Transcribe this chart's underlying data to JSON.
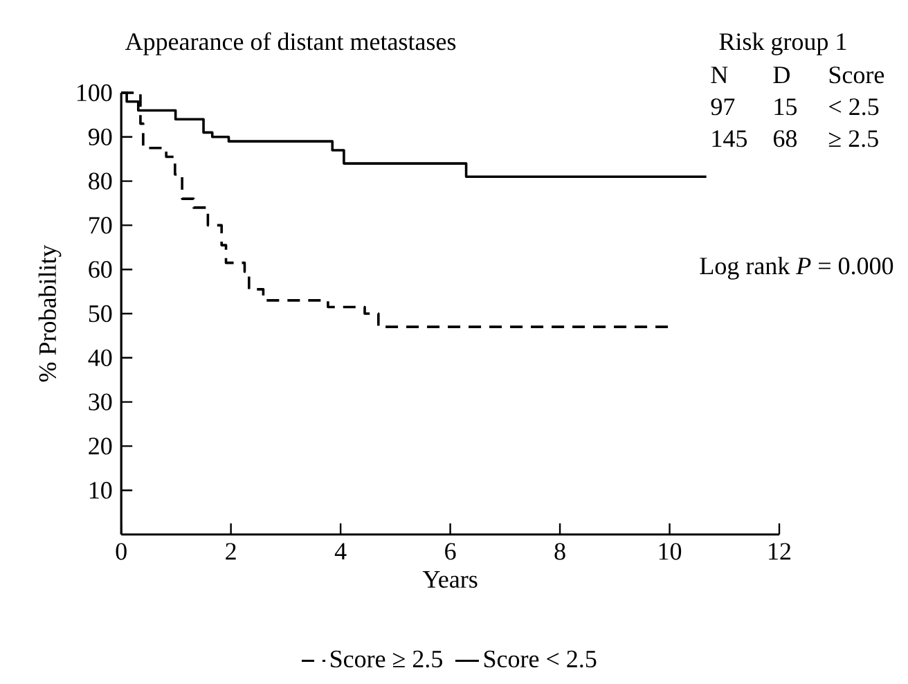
{
  "chart_data": {
    "type": "step",
    "title": "Appearance of distant metastases",
    "xlabel": "Years",
    "ylabel": "% Probability",
    "xlim": [
      0,
      12
    ],
    "ylim": [
      0,
      100
    ],
    "xticks": [
      0,
      2,
      4,
      6,
      8,
      10,
      12
    ],
    "yticks": [
      10,
      20,
      30,
      40,
      50,
      60,
      70,
      80,
      90,
      100
    ],
    "legend": "bottom",
    "marker": "none",
    "series": [
      {
        "name": "Score ≥ 2.5",
        "color": "#000000",
        "line_style": "dashed",
        "x": [
          0,
          0.35,
          0.4,
          0.82,
          0.98,
          1.11,
          1.32,
          1.58,
          1.83,
          1.91,
          2.25,
          2.33,
          2.59,
          3.77,
          4.44,
          4.69,
          9.99
        ],
        "values": [
          100,
          93,
          87.5,
          85.5,
          81.5,
          76,
          74,
          70,
          65.5,
          61.5,
          59.5,
          55.5,
          53,
          51.5,
          50,
          47,
          47
        ]
      },
      {
        "name": "Score < 2.5",
        "color": "#000000",
        "line_style": "solid",
        "x": [
          0,
          0.1,
          0.31,
          0.99,
          1.5,
          1.66,
          1.96,
          3.85,
          4.06,
          6.29,
          10.67
        ],
        "values": [
          100,
          98,
          96,
          94,
          91,
          90,
          89,
          87,
          84,
          81,
          81
        ]
      }
    ],
    "annotations": [
      "Risk group 1",
      "N",
      "D",
      "Score",
      "97",
      "15",
      "< 2.5",
      "145",
      "68",
      "≥ 2.5",
      "Log rank *P* = 0.000"
    ]
  }
}
